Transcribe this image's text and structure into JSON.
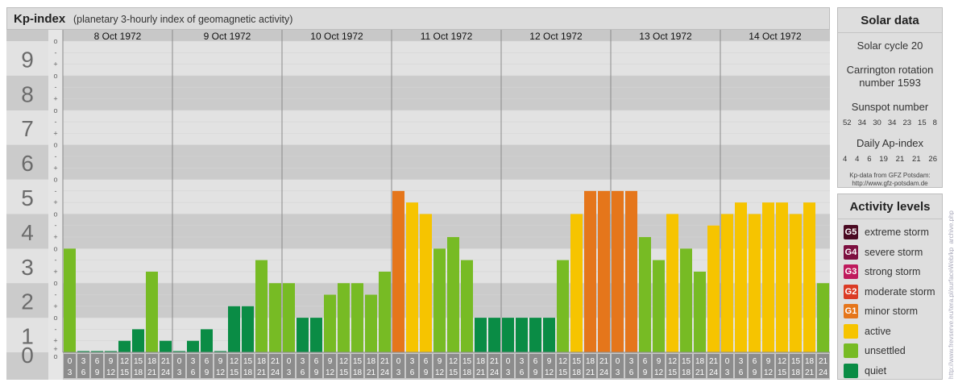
{
  "title": {
    "main": "Kp-index",
    "subtitle": "(planetary 3-hourly index of geomagnetic activity)"
  },
  "chart_data": {
    "type": "bar",
    "title": "Kp-index",
    "subtitle": "(planetary 3-hourly index of geomagnetic activity)",
    "ylim": [
      0,
      9
    ],
    "y_ticks": [
      "0",
      "1",
      "2",
      "3",
      "4",
      "5",
      "6",
      "7",
      "8",
      "9"
    ],
    "sub_ticks": [
      "+",
      "o",
      "-"
    ],
    "days": [
      "8 Oct 1972",
      "9 Oct 1972",
      "10 Oct 1972",
      "11 Oct 1972",
      "12 Oct 1972",
      "13 Oct 1972",
      "14 Oct 1972"
    ],
    "slot_labels": [
      [
        "0",
        "3"
      ],
      [
        "3",
        "6"
      ],
      [
        "6",
        "9"
      ],
      [
        "9",
        "12"
      ],
      [
        "12",
        "15"
      ],
      [
        "15",
        "18"
      ],
      [
        "18",
        "21"
      ],
      [
        "21",
        "24"
      ]
    ],
    "values": [
      [
        3.0,
        0,
        0,
        0,
        0.333,
        0.667,
        2.333,
        0.333
      ],
      [
        0,
        0.333,
        0.667,
        0,
        1.333,
        1.333,
        2.667,
        2.0
      ],
      [
        2.0,
        1.0,
        1.0,
        1.667,
        2.0,
        2.0,
        1.667,
        2.333
      ],
      [
        4.667,
        4.333,
        4.0,
        3.0,
        3.333,
        2.667,
        1.0,
        1.0
      ],
      [
        1.0,
        1.0,
        1.0,
        1.0,
        2.667,
        4.0,
        4.667,
        4.667
      ],
      [
        4.667,
        4.667,
        3.333,
        2.667,
        4.0,
        3.0,
        2.333,
        3.667
      ],
      [
        4.0,
        4.333,
        4.0,
        4.333,
        4.333,
        4.0,
        4.333,
        2.0
      ],
      [
        3.0
      ]
    ],
    "color_scheme": {
      "quiet": "#0a8c45",
      "unsettled": "#77bb24",
      "active": "#f6c400",
      "minor": "#e5761b"
    },
    "grid": true
  },
  "solar": {
    "title": "Solar data",
    "cycle": "Solar cycle 20",
    "carrington_line1": "Carrington rotation",
    "carrington_line2": "number 1593",
    "sunspot_title": "Sunspot number",
    "sunspot_values": [
      "52",
      "34",
      "30",
      "34",
      "23",
      "15",
      "8"
    ],
    "ap_title": "Daily Ap-index",
    "ap_values": [
      "4",
      "4",
      "6",
      "19",
      "21",
      "21",
      "26"
    ],
    "source_line1": "Kp-data from GFZ Potsdam:",
    "source_line2": "http://www.gfz-potsdam.de"
  },
  "activity": {
    "title": "Activity levels",
    "levels": [
      {
        "badge": "G5",
        "label": "extreme storm",
        "color": "#4a0a22"
      },
      {
        "badge": "G4",
        "label": "severe storm",
        "color": "#7d1040"
      },
      {
        "badge": "G3",
        "label": "strong storm",
        "color": "#bf1a5c"
      },
      {
        "badge": "G2",
        "label": "moderate storm",
        "color": "#db3b25"
      },
      {
        "badge": "G1",
        "label": "minor storm",
        "color": "#e5761b"
      },
      {
        "badge": "",
        "label": "active",
        "color": "#f6c400"
      },
      {
        "badge": "",
        "label": "unsettled",
        "color": "#77bb24"
      },
      {
        "badge": "",
        "label": "quiet",
        "color": "#0a8c45"
      }
    ]
  },
  "watermark": "http://www.frevserve.eu/tera.pl/surfaceWeb/kp_archive.php"
}
